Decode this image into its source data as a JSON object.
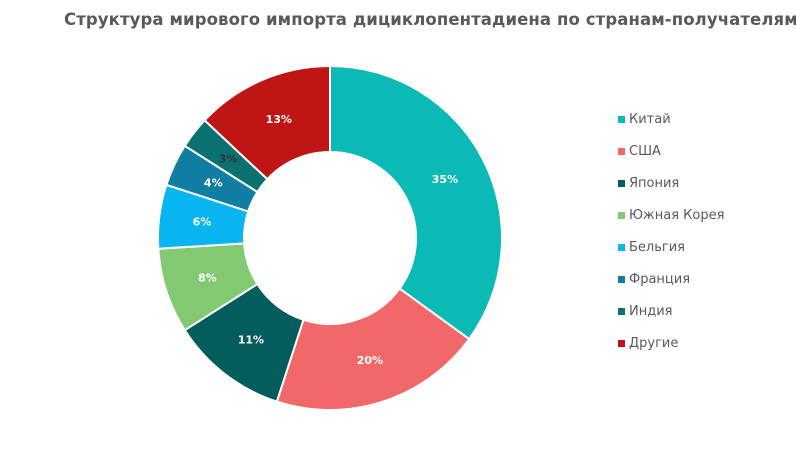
{
  "chart_data": {
    "type": "pie",
    "title": "Структура мирового импорта дициклопентадиена  по странам-получателям",
    "legend_position": "right",
    "slices": [
      {
        "name": "Китай",
        "value": 35,
        "label": "35%",
        "color": "#0BBAB5",
        "label_color": "#ffffff"
      },
      {
        "name": "США",
        "value": 20,
        "label": "20%",
        "color": "#F26868",
        "label_color": "#ffffff"
      },
      {
        "name": "Япония",
        "value": 11,
        "label": "11%",
        "color": "#045D5C",
        "label_color": "#ffffff"
      },
      {
        "name": "Южная Корея",
        "value": 8,
        "label": "8%",
        "color": "#82C972",
        "label_color": "#ffffff"
      },
      {
        "name": "Бельгия",
        "value": 6,
        "label": "6%",
        "color": "#08B5F0",
        "label_color": "#ffffff"
      },
      {
        "name": "Франция",
        "value": 4,
        "label": "4%",
        "color": "#107DA2",
        "label_color": "#ffffff"
      },
      {
        "name": "Индия",
        "value": 3,
        "label": "3%",
        "color": "#0B7070",
        "label_color": "#333333"
      },
      {
        "name": "Другие",
        "value": 13,
        "label": "13%",
        "color": "#C01515",
        "label_color": "#ffffff"
      }
    ]
  }
}
